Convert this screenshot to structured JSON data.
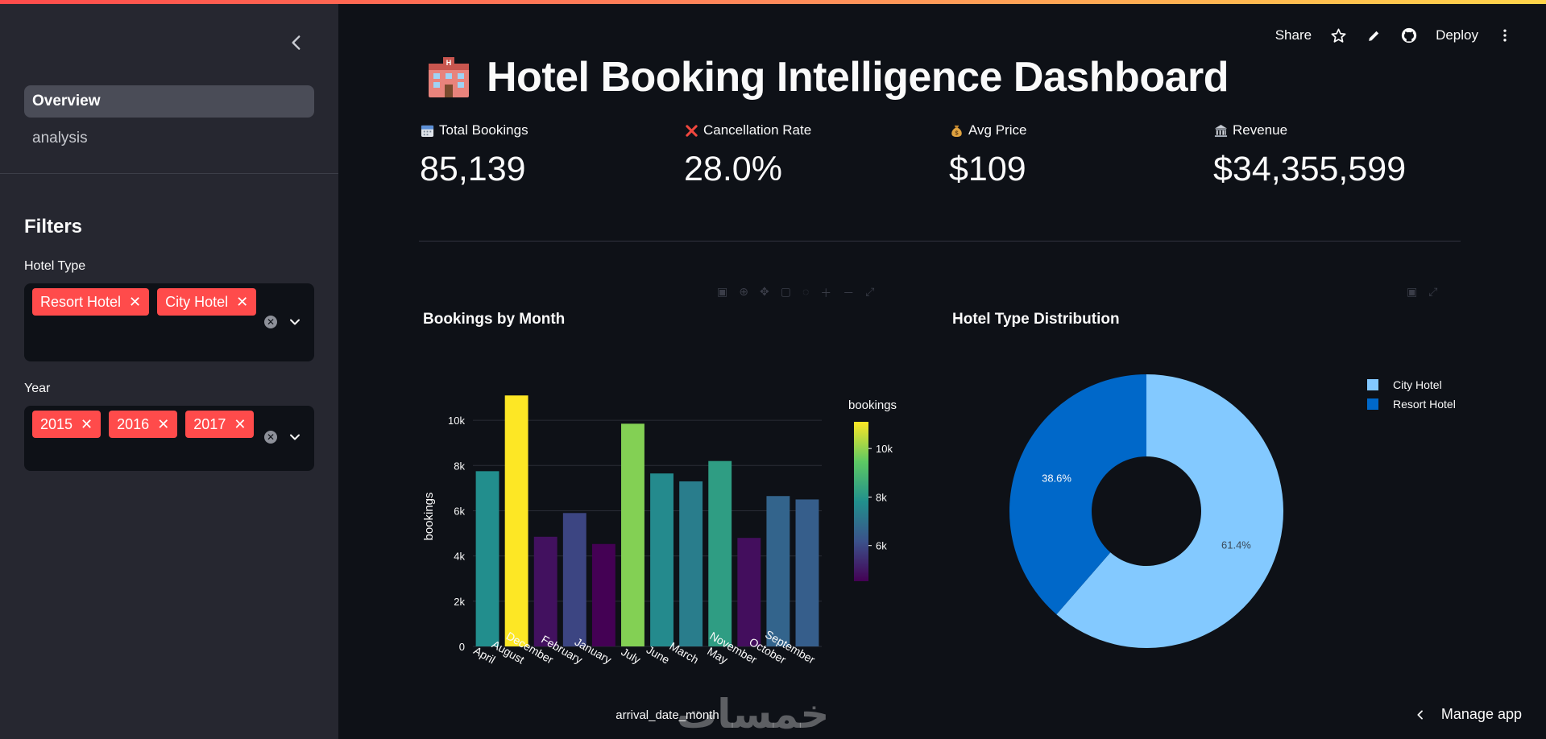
{
  "sidebar": {
    "nav": [
      {
        "label": "Overview",
        "active": true
      },
      {
        "label": "analysis",
        "active": false
      }
    ],
    "filters_title": "Filters",
    "hotel_type": {
      "label": "Hotel Type",
      "chips": [
        "Resort Hotel",
        "City Hotel"
      ]
    },
    "year": {
      "label": "Year",
      "chips": [
        "2015",
        "2016",
        "2017"
      ]
    }
  },
  "toolbar": {
    "share": "Share",
    "deploy": "Deploy",
    "icons": [
      "star-icon",
      "pencil-icon",
      "github-icon",
      "more-vertical-icon"
    ]
  },
  "title": {
    "emoji": "hotel-icon",
    "text": "Hotel Booking Intelligence Dashboard"
  },
  "metrics": [
    {
      "icon": "calendar-icon",
      "label": "Total Bookings",
      "value": "85,139"
    },
    {
      "icon": "cross-mark-icon",
      "label": "Cancellation Rate",
      "value": "28.0%"
    },
    {
      "icon": "money-bag-icon",
      "label": "Avg Price",
      "value": "$109"
    },
    {
      "icon": "bank-icon",
      "label": "Revenue",
      "value": "$34,355,599"
    }
  ],
  "charts": {
    "bar_title": "Bookings by Month",
    "pie_title": "Hotel Type Distribution"
  },
  "chart_data": [
    {
      "type": "bar",
      "title": "Bookings by Month",
      "xlabel": "arrival_date_month",
      "ylabel": "bookings",
      "categories": [
        "April",
        "August",
        "December",
        "February",
        "January",
        "July",
        "June",
        "March",
        "May",
        "November",
        "October",
        "September"
      ],
      "values": [
        7750,
        11100,
        4850,
        5900,
        4530,
        9850,
        7650,
        7300,
        8200,
        4800,
        6650,
        6500
      ],
      "ylim": [
        0,
        11500
      ],
      "yticks": [
        0,
        2000,
        4000,
        6000,
        8000,
        10000
      ],
      "ytick_labels": [
        "0",
        "2k",
        "4k",
        "6k",
        "8k",
        "10k"
      ],
      "colorbar": {
        "title": "bookings",
        "range": [
          4530,
          11100
        ],
        "ticks": [
          6000,
          8000,
          10000
        ],
        "tick_labels": [
          "6k",
          "8k",
          "10k"
        ],
        "colorscale": [
          "#440154",
          "#3b528b",
          "#21908d",
          "#5dc963",
          "#fde725"
        ]
      },
      "grid": true
    },
    {
      "type": "pie",
      "title": "Hotel Type Distribution",
      "hole": 0.4,
      "slices": [
        {
          "label": "City Hotel",
          "value": 61.4,
          "text": "61.4%",
          "color": "#83c9ff"
        },
        {
          "label": "Resort Hotel",
          "value": 38.6,
          "text": "38.6%",
          "color": "#0068c9"
        }
      ],
      "legend": "top-right"
    }
  ],
  "manage_app": "Manage app",
  "watermark": "خمسات"
}
